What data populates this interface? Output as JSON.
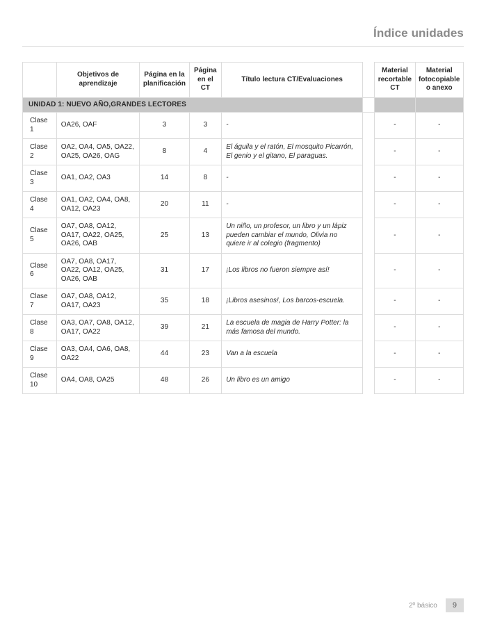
{
  "header_title": "Índice unidades",
  "columns": {
    "objetivos": "Objetivos de aprendizaje",
    "pagina_plan": "Página en la planificación",
    "pagina_ct": "Página en el CT",
    "titulo": "Título lectura CT/Evaluaciones",
    "mat_rec": "Material recortable CT",
    "mat_foto": "Material fotocopiable o anexo"
  },
  "section_title": "UNIDAD 1: NUEVO AÑO,GRANDES LECTORES",
  "rows": [
    {
      "clase": "Clase 1",
      "obj": "OA26, OAF",
      "plan": "3",
      "ct": "3",
      "titulo": "-",
      "rec": "-",
      "foto": "-"
    },
    {
      "clase": "Clase 2",
      "obj": "OA2, OA4, OA5, OA22, OA25, OA26, OAG",
      "plan": "8",
      "ct": "4",
      "titulo": "El águila y el ratón, El mosquito Picarrón, El genio y el gitano, El paraguas.",
      "rec": "-",
      "foto": "-"
    },
    {
      "clase": "Clase 3",
      "obj": "OA1, OA2, OA3",
      "plan": "14",
      "ct": "8",
      "titulo": "-",
      "rec": "-",
      "foto": "-"
    },
    {
      "clase": "Clase 4",
      "obj": "OA1, OA2, OA4, OA8, OA12, OA23",
      "plan": "20",
      "ct": "11",
      "titulo": "-",
      "rec": "-",
      "foto": "-"
    },
    {
      "clase": "Clase 5",
      "obj": "OA7, OA8, OA12, OA17, OA22, OA25, OA26, OAB",
      "plan": "25",
      "ct": "13",
      "titulo": "Un niño, un profesor, un libro y un lápiz pueden cambiar el mundo, Olivia no quiere ir al colegio (fragmento)",
      "rec": "-",
      "foto": "-"
    },
    {
      "clase": "Clase 6",
      "obj": "OA7, OA8, OA17, OA22, OA12, OA25, OA26, OAB",
      "plan": "31",
      "ct": "17",
      "titulo": "¡Los libros no fueron siempre así!",
      "rec": "-",
      "foto": "-"
    },
    {
      "clase": "Clase 7",
      "obj": "OA7, OA8, OA12, OA17, OA23",
      "plan": "35",
      "ct": "18",
      "titulo": "¡Libros asesinos!, Los barcos-escuela.",
      "rec": "-",
      "foto": "-"
    },
    {
      "clase": "Clase 8",
      "obj": "OA3, OA7, OA8, OA12, OA17, OA22",
      "plan": "39",
      "ct": "21",
      "titulo": "La escuela de magia de Harry Potter: la más famosa del mundo.",
      "rec": "-",
      "foto": "-"
    },
    {
      "clase": "Clase 9",
      "obj": "OA3, OA4, OA6, OA8, OA22",
      "plan": "44",
      "ct": "23",
      "titulo": "Van a la escuela",
      "rec": "-",
      "foto": "-"
    },
    {
      "clase": "Clase 10",
      "obj": "OA4, OA8, OA25",
      "plan": "48",
      "ct": "26",
      "titulo": "Un libro es un amigo",
      "rec": "-",
      "foto": "-"
    }
  ],
  "footer": {
    "grade": "2º básico",
    "page": "9"
  },
  "colwidths": {
    "clase": 48,
    "obj": 118,
    "plan": 54,
    "ct": 46,
    "titulo": 200,
    "rec": 50,
    "foto": 58
  }
}
